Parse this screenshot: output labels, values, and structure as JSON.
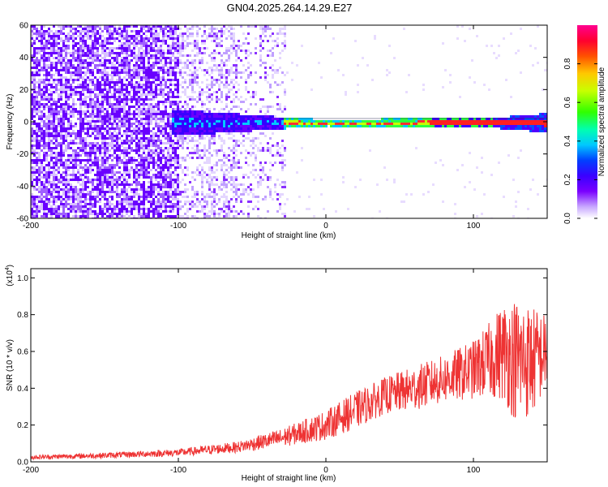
{
  "title": "GN04.2025.264.14.29.E27",
  "chart_data": [
    {
      "type": "heatmap",
      "xlabel": "Height of straight line (km)",
      "ylabel": "Frequency (Hz)",
      "xlim": [
        -200,
        150
      ],
      "ylim": [
        -60,
        60
      ],
      "xticks": [
        -200,
        -100,
        0,
        100
      ],
      "yticks": [
        60,
        40,
        20,
        0,
        -20,
        -40,
        -60
      ],
      "ridge": {
        "frequency_hz": 0,
        "half_width_hz_by_height": [
          [
            -100,
            8
          ],
          [
            -50,
            5
          ],
          [
            -20,
            3
          ],
          [
            0,
            2
          ],
          [
            70,
            3
          ],
          [
            110,
            3
          ],
          [
            150,
            6
          ]
        ]
      },
      "noise_cutoff_height_km": -28,
      "colorbar": {
        "label": "Normalized spectral amplitude",
        "ticks": [
          "0.0",
          "0.2",
          "0.4",
          "0.6",
          "0.8"
        ],
        "range": [
          0,
          1
        ]
      }
    },
    {
      "type": "line",
      "xlabel": "Height of straight line (km)",
      "ylabel": "SNR (10 * v/v)",
      "scale_label": "(x10",
      "scale_exp": "4",
      "scale_close": ")",
      "xlim": [
        -200,
        150
      ],
      "ylim": [
        0,
        1.05
      ],
      "xticks": [
        -200,
        -100,
        0,
        100
      ],
      "yticks": [
        "0.0",
        "0.2",
        "0.4",
        "0.6",
        "0.8",
        "1.0"
      ],
      "ytick_values": [
        0,
        0.2,
        0.4,
        0.6,
        0.8,
        1.0
      ],
      "series": [
        {
          "name": "SNR",
          "color": "#ee3333",
          "envelope": [
            {
              "x": -200,
              "mean": 0.025,
              "amp": 0.012
            },
            {
              "x": -150,
              "mean": 0.035,
              "amp": 0.015
            },
            {
              "x": -100,
              "mean": 0.05,
              "amp": 0.02
            },
            {
              "x": -60,
              "mean": 0.08,
              "amp": 0.03
            },
            {
              "x": -30,
              "mean": 0.13,
              "amp": 0.05
            },
            {
              "x": 0,
              "mean": 0.2,
              "amp": 0.08
            },
            {
              "x": 20,
              "mean": 0.28,
              "amp": 0.1
            },
            {
              "x": 40,
              "mean": 0.36,
              "amp": 0.1
            },
            {
              "x": 60,
              "mean": 0.4,
              "amp": 0.12
            },
            {
              "x": 80,
              "mean": 0.45,
              "amp": 0.13
            },
            {
              "x": 100,
              "mean": 0.5,
              "amp": 0.16
            },
            {
              "x": 110,
              "mean": 0.55,
              "amp": 0.2
            },
            {
              "x": 120,
              "mean": 0.6,
              "amp": 0.27
            },
            {
              "x": 130,
              "mean": 0.55,
              "amp": 0.35
            },
            {
              "x": 140,
              "mean": 0.55,
              "amp": 0.3
            },
            {
              "x": 150,
              "mean": 0.6,
              "amp": 0.2
            }
          ]
        }
      ]
    }
  ]
}
